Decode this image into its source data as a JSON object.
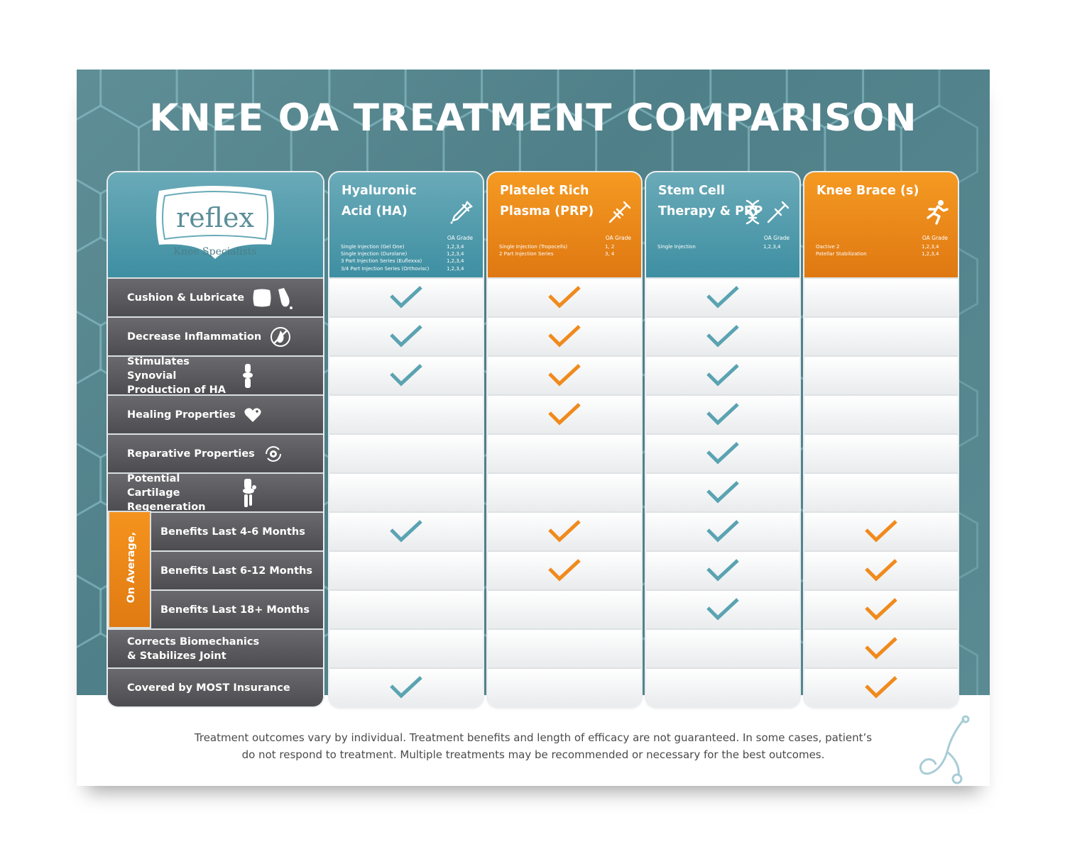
{
  "title": "KNEE OA TREATMENT COMPARISON",
  "logo": {
    "word": "reflex",
    "sub": "Knee Specialists"
  },
  "colors": {
    "teal": "#5aa3b2",
    "orange": "#f08a1c",
    "label_bg": "#5a5a5e"
  },
  "average_label": "On Average,",
  "rows": [
    {
      "label": "Cushion & Lubricate",
      "icon": "pillow-dropper-icon",
      "sub": false
    },
    {
      "label": "Decrease Inflammation",
      "icon": "no-flame-icon",
      "sub": false
    },
    {
      "label": "Stimulates Synovial Production of HA",
      "icon": "knee-joint-icon",
      "sub": false
    },
    {
      "label": "Healing Properties",
      "icon": "heart-plus-icon",
      "sub": false
    },
    {
      "label": "Reparative Properties",
      "icon": "gear-cycle-icon",
      "sub": false
    },
    {
      "label": "Potential Cartilage Regeneration",
      "icon": "knee-bone-icon",
      "sub": false
    },
    {
      "label": "Benefits Last 4-6 Months",
      "icon": "",
      "sub": true
    },
    {
      "label": "Benefits Last 6-12 Months",
      "icon": "",
      "sub": true
    },
    {
      "label": "Benefits Last 18+ Months",
      "icon": "",
      "sub": true
    },
    {
      "label": "Corrects Biomechanics & Stabilizes Joint",
      "icon": "",
      "sub": false
    },
    {
      "label": "Covered by MOST Insurance",
      "icon": "",
      "sub": false
    }
  ],
  "treatments": [
    {
      "title": "Hyaluronic Acid (HA)",
      "theme": "teal",
      "icon": "dropper-icon",
      "grade_header": "OA Grade",
      "details": [
        {
          "name": "Single Injection (Gel One)",
          "grade": "1,2,3,4"
        },
        {
          "name": "Single Injection (Durolane)",
          "grade": "1,2,3,4"
        },
        {
          "name": "3 Part Injection Series (Euflexxa)",
          "grade": "1,2,3,4"
        },
        {
          "name": "3/4 Part Injection Series (Orthovisc)",
          "grade": "1,2,3,4"
        }
      ],
      "checks": [
        true,
        true,
        true,
        false,
        false,
        false,
        true,
        false,
        false,
        false,
        true
      ]
    },
    {
      "title": "Platelet Rich Plasma (PRP)",
      "theme": "orange",
      "icon": "syringe-icon",
      "grade_header": "OA Grade",
      "details": [
        {
          "name": "Single Injection (Tropocells)",
          "grade": "1, 2"
        },
        {
          "name": "2 Part Injection Series",
          "grade": "3, 4"
        }
      ],
      "checks": [
        true,
        true,
        true,
        true,
        false,
        false,
        true,
        true,
        false,
        false,
        false
      ]
    },
    {
      "title": "Stem Cell Therapy & PRP",
      "theme": "teal",
      "icon": "dna-syringe-icon",
      "grade_header": "OA Grade",
      "details": [
        {
          "name": "Single Injection",
          "grade": "1,2,3,4"
        }
      ],
      "checks": [
        true,
        true,
        true,
        true,
        true,
        true,
        true,
        true,
        true,
        false,
        false
      ]
    },
    {
      "title": "Knee Brace (s)",
      "theme": "orange",
      "icon": "runner-icon",
      "grade_header": "OA Grade",
      "details": [
        {
          "name": "Oactive 2",
          "grade": "1,2,3,4"
        },
        {
          "name": "Patellar Stabilization",
          "grade": "1,2,3,4"
        }
      ],
      "checks": [
        false,
        false,
        false,
        false,
        false,
        false,
        true,
        true,
        true,
        true,
        true
      ]
    }
  ],
  "footer": {
    "line1": "Treatment outcomes vary by individual. Treatment benefits and length of efficacy are not guaranteed. In some cases, patient’s",
    "line2": "do not respond to treatment. Multiple treatments may be recommended or necessary for the best outcomes."
  }
}
